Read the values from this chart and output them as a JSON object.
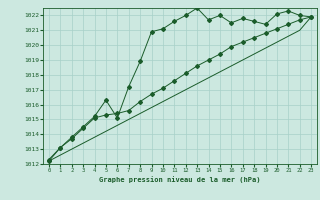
{
  "title": "Graphe pression niveau de la mer (hPa)",
  "bg_color": "#cce8e0",
  "grid_color": "#a8d0c8",
  "line_color": "#1a5c2a",
  "xlim": [
    -0.5,
    23.5
  ],
  "ylim": [
    1012,
    1022.5
  ],
  "yticks": [
    1012,
    1013,
    1014,
    1015,
    1016,
    1017,
    1018,
    1019,
    1020,
    1021,
    1022
  ],
  "xticks": [
    0,
    1,
    2,
    3,
    4,
    5,
    6,
    7,
    8,
    9,
    10,
    11,
    12,
    13,
    14,
    15,
    16,
    17,
    18,
    19,
    20,
    21,
    22,
    23
  ],
  "hours": [
    0,
    1,
    2,
    3,
    4,
    5,
    6,
    7,
    8,
    9,
    10,
    11,
    12,
    13,
    14,
    15,
    16,
    17,
    18,
    19,
    20,
    21,
    22,
    23
  ],
  "line1": [
    1012.2,
    1013.1,
    1013.8,
    1014.5,
    1015.2,
    1016.3,
    1015.1,
    1017.2,
    1018.9,
    1020.9,
    1021.1,
    1021.6,
    1022.0,
    1022.5,
    1021.7,
    1022.0,
    1021.5,
    1021.8,
    1021.6,
    1021.4,
    1022.1,
    1022.3,
    1022.0,
    1021.9
  ],
  "line2": [
    1012.3,
    1013.1,
    1013.7,
    1014.4,
    1015.1,
    1015.3,
    1015.4,
    1015.6,
    1016.2,
    1016.7,
    1017.1,
    1017.6,
    1018.1,
    1018.6,
    1019.0,
    1019.4,
    1019.9,
    1020.2,
    1020.5,
    1020.8,
    1021.1,
    1021.4,
    1021.7,
    1021.9
  ],
  "line3": [
    1012.2,
    1012.6,
    1013.0,
    1013.4,
    1013.8,
    1014.2,
    1014.6,
    1015.0,
    1015.4,
    1015.8,
    1016.2,
    1016.6,
    1017.0,
    1017.4,
    1017.8,
    1018.2,
    1018.6,
    1019.0,
    1019.4,
    1019.8,
    1020.2,
    1020.6,
    1021.0,
    1021.9
  ]
}
